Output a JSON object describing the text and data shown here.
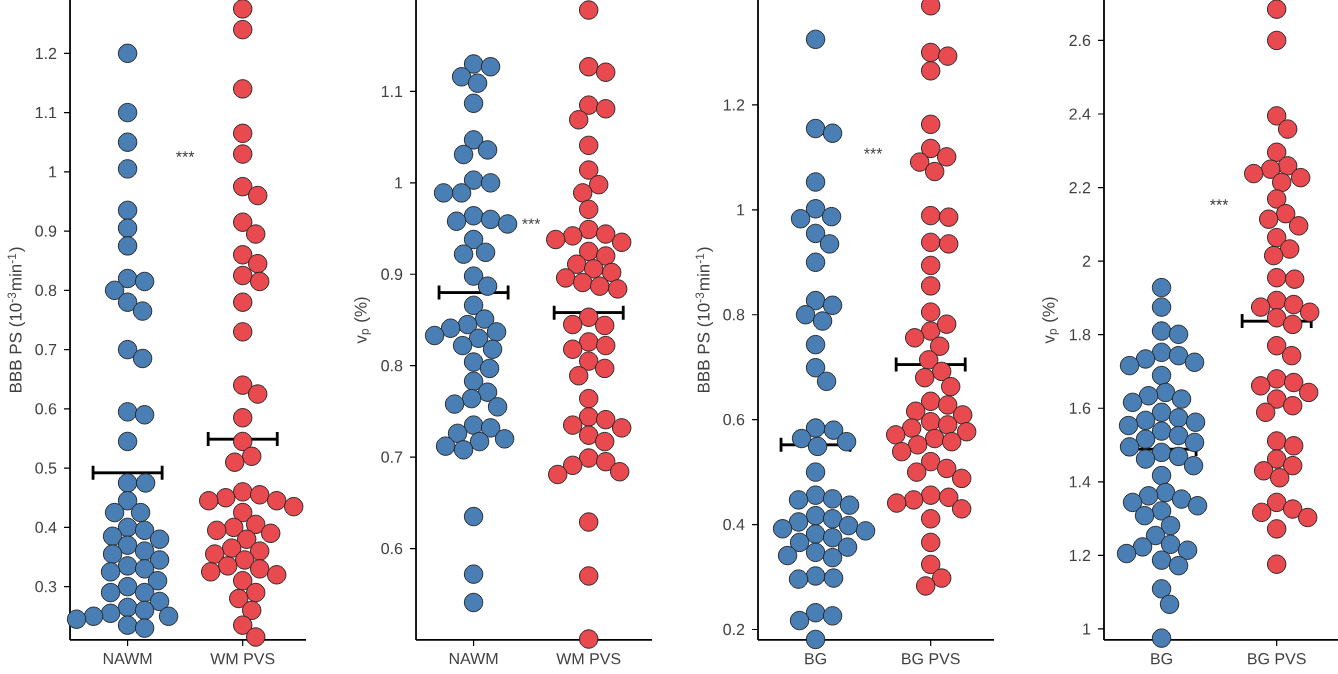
{
  "chart_data": [
    {
      "type": "scatter",
      "categories": [
        "NAWM",
        "WM PVS"
      ],
      "ylabel": "BBB PS (10$^{-3}$min$^{-1}$)",
      "ylim": [
        0.21,
        1.29
      ],
      "yticks": [
        0.3,
        0.4,
        0.5,
        0.6,
        0.7,
        0.8,
        0.9,
        1,
        1.1,
        1.2
      ],
      "annotations": [
        "***"
      ],
      "marker": "circle",
      "series": [
        {
          "color": "#4a7fb5",
          "x": [
            "NAWM",
            "NAWM",
            "NAWM",
            "NAWM",
            "NAWM",
            "NAWM",
            "NAWM",
            "NAWM",
            "NAWM",
            "NAWM",
            "NAWM",
            "NAWM",
            "NAWM",
            "NAWM",
            "NAWM",
            "NAWM",
            "NAWM",
            "NAWM",
            "NAWM",
            "NAWM",
            "NAWM",
            "NAWM",
            "NAWM",
            "NAWM",
            "NAWM",
            "NAWM",
            "NAWM",
            "NAWM",
            "NAWM",
            "NAWM",
            "NAWM",
            "NAWM",
            "NAWM",
            "NAWM",
            "NAWM",
            "NAWM",
            "NAWM",
            "NAWM",
            "NAWM",
            "NAWM",
            "NAWM",
            "NAWM",
            "NAWM",
            "NAWM",
            "NAWM",
            "NAWM"
          ],
          "values": [
            1.2,
            1.1,
            1.05,
            1.005,
            0.935,
            0.905,
            0.875,
            0.82,
            0.815,
            0.8,
            0.78,
            0.765,
            0.7,
            0.685,
            0.595,
            0.59,
            0.545,
            0.475,
            0.475,
            0.445,
            0.425,
            0.425,
            0.4,
            0.395,
            0.385,
            0.38,
            0.37,
            0.36,
            0.355,
            0.345,
            0.335,
            0.33,
            0.325,
            0.31,
            0.3,
            0.29,
            0.29,
            0.275,
            0.265,
            0.26,
            0.255,
            0.25,
            0.25,
            0.245,
            0.235,
            0.23
          ]
        },
        {
          "color": "#e84a4f",
          "x": [
            "WM PVS",
            "WM PVS",
            "WM PVS",
            "WM PVS",
            "WM PVS",
            "WM PVS",
            "WM PVS",
            "WM PVS",
            "WM PVS",
            "WM PVS",
            "WM PVS",
            "WM PVS",
            "WM PVS",
            "WM PVS",
            "WM PVS",
            "WM PVS",
            "WM PVS",
            "WM PVS",
            "WM PVS",
            "WM PVS",
            "WM PVS",
            "WM PVS",
            "WM PVS",
            "WM PVS",
            "WM PVS",
            "WM PVS",
            "WM PVS",
            "WM PVS",
            "WM PVS",
            "WM PVS",
            "WM PVS",
            "WM PVS",
            "WM PVS",
            "WM PVS",
            "WM PVS",
            "WM PVS",
            "WM PVS",
            "WM PVS",
            "WM PVS",
            "WM PVS",
            "WM PVS",
            "WM PVS",
            "WM PVS",
            "WM PVS",
            "WM PVS",
            "WM PVS",
            "WM PVS"
          ],
          "values": [
            1.275,
            1.24,
            1.14,
            1.065,
            1.03,
            0.975,
            0.96,
            0.915,
            0.895,
            0.86,
            0.845,
            0.825,
            0.815,
            0.78,
            0.73,
            0.64,
            0.625,
            0.585,
            0.545,
            0.52,
            0.51,
            0.46,
            0.455,
            0.45,
            0.445,
            0.445,
            0.435,
            0.425,
            0.405,
            0.4,
            0.395,
            0.39,
            0.38,
            0.365,
            0.36,
            0.355,
            0.345,
            0.335,
            0.33,
            0.325,
            0.32,
            0.31,
            0.29,
            0.28,
            0.26,
            0.235,
            0.215
          ]
        },
        {
          "type": "box",
          "color": "#000000",
          "boxes": [
            {
              "low": 0.492,
              "q1": 0.492,
              "median": 0.492,
              "q3": 0.492,
              "high": 0.492
            },
            {
              "low": 0.549,
              "q1": 0.549,
              "median": 0.549,
              "q3": 0.549,
              "high": 0.549
            }
          ]
        }
      ]
    },
    {
      "type": "scatter",
      "categories": [
        "NAWM",
        "WM PVS"
      ],
      "ylabel": "v$_{p}$ (%)",
      "ylim": [
        0.5,
        1.2
      ],
      "yticks": [
        0.6,
        0.7,
        0.8,
        0.9,
        1,
        1.1
      ],
      "annotations": [
        "***"
      ],
      "marker": "circle",
      "series": [
        {
          "color": "#4a7fb5",
          "x": [
            "NAWM",
            "NAWM",
            "NAWM",
            "NAWM",
            "NAWM",
            "NAWM",
            "NAWM",
            "NAWM",
            "NAWM",
            "NAWM",
            "NAWM",
            "NAWM",
            "NAWM",
            "NAWM",
            "NAWM",
            "NAWM",
            "NAWM",
            "NAWM",
            "NAWM",
            "NAWM",
            "NAWM",
            "NAWM",
            "NAWM",
            "NAWM",
            "NAWM",
            "NAWM",
            "NAWM",
            "NAWM",
            "NAWM",
            "NAWM",
            "NAWM",
            "NAWM",
            "NAWM",
            "NAWM",
            "NAWM",
            "NAWM",
            "NAWM",
            "NAWM",
            "NAWM",
            "NAWM",
            "NAWM",
            "NAWM",
            "NAWM",
            "NAWM",
            "NAWM",
            "NAWM",
            "NAWM"
          ],
          "values": [
            1.13,
            1.127,
            1.116,
            1.109,
            1.087,
            1.047,
            1.036,
            1.031,
            1.003,
            1.0,
            0.989,
            0.989,
            0.964,
            0.96,
            0.958,
            0.955,
            0.938,
            0.924,
            0.922,
            0.898,
            0.887,
            0.866,
            0.851,
            0.845,
            0.841,
            0.837,
            0.833,
            0.83,
            0.822,
            0.818,
            0.804,
            0.797,
            0.783,
            0.771,
            0.764,
            0.758,
            0.755,
            0.735,
            0.732,
            0.726,
            0.72,
            0.717,
            0.712,
            0.708,
            0.635,
            0.572,
            0.541
          ]
        },
        {
          "color": "#e84a4f",
          "x": [
            "WM PVS",
            "WM PVS",
            "WM PVS",
            "WM PVS",
            "WM PVS",
            "WM PVS",
            "WM PVS",
            "WM PVS",
            "WM PVS",
            "WM PVS",
            "WM PVS",
            "WM PVS",
            "WM PVS",
            "WM PVS",
            "WM PVS",
            "WM PVS",
            "WM PVS",
            "WM PVS",
            "WM PVS",
            "WM PVS",
            "WM PVS",
            "WM PVS",
            "WM PVS",
            "WM PVS",
            "WM PVS",
            "WM PVS",
            "WM PVS",
            "WM PVS",
            "WM PVS",
            "WM PVS",
            "WM PVS",
            "WM PVS",
            "WM PVS",
            "WM PVS",
            "WM PVS",
            "WM PVS",
            "WM PVS",
            "WM PVS",
            "WM PVS",
            "WM PVS",
            "WM PVS",
            "WM PVS",
            "WM PVS",
            "WM PVS",
            "WM PVS",
            "WM PVS",
            "WM PVS",
            "WM PVS",
            "WM PVS"
          ],
          "values": [
            1.189,
            1.127,
            1.121,
            1.085,
            1.081,
            1.069,
            1.041,
            1.014,
            0.998,
            0.989,
            0.971,
            0.949,
            0.944,
            0.942,
            0.938,
            0.935,
            0.925,
            0.92,
            0.911,
            0.906,
            0.902,
            0.896,
            0.891,
            0.887,
            0.884,
            0.853,
            0.844,
            0.845,
            0.826,
            0.822,
            0.818,
            0.805,
            0.797,
            0.789,
            0.764,
            0.744,
            0.741,
            0.735,
            0.732,
            0.724,
            0.717,
            0.699,
            0.695,
            0.691,
            0.684,
            0.681,
            0.629,
            0.57,
            0.501
          ]
        },
        {
          "type": "box",
          "color": "#000000",
          "boxes": [
            {
              "low": 0.88,
              "q1": 0.88,
              "median": 0.88,
              "q3": 0.88,
              "high": 0.88
            },
            {
              "low": 0.858,
              "q1": 0.858,
              "median": 0.858,
              "q3": 0.858,
              "high": 0.858
            }
          ]
        }
      ]
    },
    {
      "type": "scatter",
      "categories": [
        "BG",
        "BG PVS"
      ],
      "ylabel": "BBB PS (10$^{-3}$min$^{-1}$)",
      "ylim": [
        0.18,
        1.4
      ],
      "yticks": [
        0.2,
        0.4,
        0.6,
        0.8,
        1,
        1.2
      ],
      "annotations": [
        "***"
      ],
      "marker": "circle",
      "series": [
        {
          "color": "#4a7fb5",
          "x": [
            "BG",
            "BG",
            "BG",
            "BG",
            "BG",
            "BG",
            "BG",
            "BG",
            "BG",
            "BG",
            "BG",
            "BG",
            "BG",
            "BG",
            "BG",
            "BG",
            "BG",
            "BG",
            "BG",
            "BG",
            "BG",
            "BG",
            "BG",
            "BG",
            "BG",
            "BG",
            "BG",
            "BG",
            "BG",
            "BG",
            "BG",
            "BG",
            "BG",
            "BG",
            "BG",
            "BG",
            "BG",
            "BG",
            "BG",
            "BG",
            "BG",
            "BG",
            "BG",
            "BG",
            "BG",
            "BG",
            "BG"
          ],
          "values": [
            1.325,
            1.155,
            1.146,
            1.053,
            1.002,
            0.987,
            0.983,
            0.955,
            0.935,
            0.9,
            0.827,
            0.818,
            0.8,
            0.788,
            0.743,
            0.699,
            0.673,
            0.584,
            0.58,
            0.564,
            0.558,
            0.549,
            0.5,
            0.456,
            0.449,
            0.447,
            0.437,
            0.417,
            0.411,
            0.405,
            0.398,
            0.392,
            0.388,
            0.382,
            0.375,
            0.366,
            0.357,
            0.347,
            0.341,
            0.337,
            0.302,
            0.298,
            0.296,
            0.232,
            0.226,
            0.217,
            0.181
          ]
        },
        {
          "color": "#e84a4f",
          "x": [
            "BG PVS",
            "BG PVS",
            "BG PVS",
            "BG PVS",
            "BG PVS",
            "BG PVS",
            "BG PVS",
            "BG PVS",
            "BG PVS",
            "BG PVS",
            "BG PVS",
            "BG PVS",
            "BG PVS",
            "BG PVS",
            "BG PVS",
            "BG PVS",
            "BG PVS",
            "BG PVS",
            "BG PVS",
            "BG PVS",
            "BG PVS",
            "BG PVS",
            "BG PVS",
            "BG PVS",
            "BG PVS",
            "BG PVS",
            "BG PVS",
            "BG PVS",
            "BG PVS",
            "BG PVS",
            "BG PVS",
            "BG PVS",
            "BG PVS",
            "BG PVS",
            "BG PVS",
            "BG PVS",
            "BG PVS",
            "BG PVS",
            "BG PVS",
            "BG PVS",
            "BG PVS",
            "BG PVS",
            "BG PVS",
            "BG PVS",
            "BG PVS",
            "BG PVS",
            "BG PVS",
            "BG PVS",
            "BG PVS",
            "BG PVS",
            "BG PVS"
          ],
          "values": [
            1.389,
            1.3,
            1.293,
            1.265,
            1.163,
            1.117,
            1.101,
            1.091,
            1.073,
            0.989,
            0.986,
            0.938,
            0.935,
            0.894,
            0.855,
            0.805,
            0.769,
            0.782,
            0.756,
            0.74,
            0.714,
            0.692,
            0.68,
            0.663,
            0.635,
            0.628,
            0.616,
            0.609,
            0.596,
            0.59,
            0.584,
            0.577,
            0.571,
            0.564,
            0.558,
            0.552,
            0.539,
            0.52,
            0.507,
            0.5,
            0.488,
            0.456,
            0.452,
            0.447,
            0.441,
            0.43,
            0.411,
            0.366,
            0.324,
            0.298,
            0.283
          ]
        },
        {
          "type": "box",
          "color": "#000000",
          "boxes": [
            {
              "low": 0.552,
              "q1": 0.552,
              "median": 0.552,
              "q3": 0.552,
              "high": 0.552
            },
            {
              "low": 0.705,
              "q1": 0.705,
              "median": 0.705,
              "q3": 0.705,
              "high": 0.705
            }
          ]
        }
      ]
    },
    {
      "type": "scatter",
      "categories": [
        "BG",
        "BG PVS"
      ],
      "ylabel": "v$_{p}$ (%)",
      "ylim": [
        0.97,
        2.71
      ],
      "yticks": [
        1,
        1.2,
        1.4,
        1.6,
        1.8,
        2,
        2.2,
        2.4,
        2.6
      ],
      "annotations": [
        "***"
      ],
      "marker": "circle",
      "series": [
        {
          "color": "#4a7fb5",
          "x": [
            "BG",
            "BG",
            "BG",
            "BG",
            "BG",
            "BG",
            "BG",
            "BG",
            "BG",
            "BG",
            "BG",
            "BG",
            "BG",
            "BG",
            "BG",
            "BG",
            "BG",
            "BG",
            "BG",
            "BG",
            "BG",
            "BG",
            "BG",
            "BG",
            "BG",
            "BG",
            "BG",
            "BG",
            "BG",
            "BG",
            "BG",
            "BG",
            "BG",
            "BG",
            "BG",
            "BG",
            "BG",
            "BG",
            "BG",
            "BG",
            "BG",
            "BG",
            "BG",
            "BG",
            "BG",
            "BG",
            "BG"
          ],
          "values": [
            1.928,
            1.875,
            1.81,
            1.801,
            1.752,
            1.743,
            1.734,
            1.725,
            1.716,
            1.689,
            1.643,
            1.634,
            1.625,
            1.616,
            1.589,
            1.574,
            1.567,
            1.562,
            1.553,
            1.538,
            1.526,
            1.516,
            1.507,
            1.495,
            1.48,
            1.469,
            1.462,
            1.444,
            1.417,
            1.371,
            1.362,
            1.353,
            1.344,
            1.335,
            1.321,
            1.308,
            1.281,
            1.254,
            1.23,
            1.223,
            1.214,
            1.205,
            1.187,
            1.172,
            1.109,
            1.067,
            0.975
          ]
        },
        {
          "color": "#e84a4f",
          "x": [
            "BG PVS",
            "BG PVS",
            "BG PVS",
            "BG PVS",
            "BG PVS",
            "BG PVS",
            "BG PVS",
            "BG PVS",
            "BG PVS",
            "BG PVS",
            "BG PVS",
            "BG PVS",
            "BG PVS",
            "BG PVS",
            "BG PVS",
            "BG PVS",
            "BG PVS",
            "BG PVS",
            "BG PVS",
            "BG PVS",
            "BG PVS",
            "BG PVS",
            "BG PVS",
            "BG PVS",
            "BG PVS",
            "BG PVS",
            "BG PVS",
            "BG PVS",
            "BG PVS",
            "BG PVS",
            "BG PVS",
            "BG PVS",
            "BG PVS",
            "BG PVS",
            "BG PVS",
            "BG PVS",
            "BG PVS",
            "BG PVS",
            "BG PVS",
            "BG PVS",
            "BG PVS",
            "BG PVS",
            "BG PVS",
            "BG PVS",
            "BG PVS",
            "BG PVS"
          ],
          "values": [
            2.685,
            2.6,
            2.395,
            2.359,
            2.296,
            2.259,
            2.25,
            2.238,
            2.227,
            2.214,
            2.169,
            2.129,
            2.114,
            2.096,
            2.064,
            2.033,
            2.015,
            1.955,
            1.951,
            1.893,
            1.882,
            1.875,
            1.861,
            1.846,
            1.828,
            1.77,
            1.743,
            1.68,
            1.67,
            1.661,
            1.643,
            1.625,
            1.607,
            1.589,
            1.511,
            1.498,
            1.462,
            1.444,
            1.43,
            1.411,
            1.344,
            1.326,
            1.317,
            1.303,
            1.272,
            1.176
          ]
        },
        {
          "type": "box",
          "color": "#000000",
          "boxes": [
            {
              "low": 1.489,
              "q1": 1.489,
              "median": 1.489,
              "q3": 1.489,
              "high": 1.489
            },
            {
              "low": 1.837,
              "q1": 1.837,
              "median": 1.837,
              "q3": 1.837,
              "high": 1.837
            }
          ]
        }
      ]
    }
  ]
}
